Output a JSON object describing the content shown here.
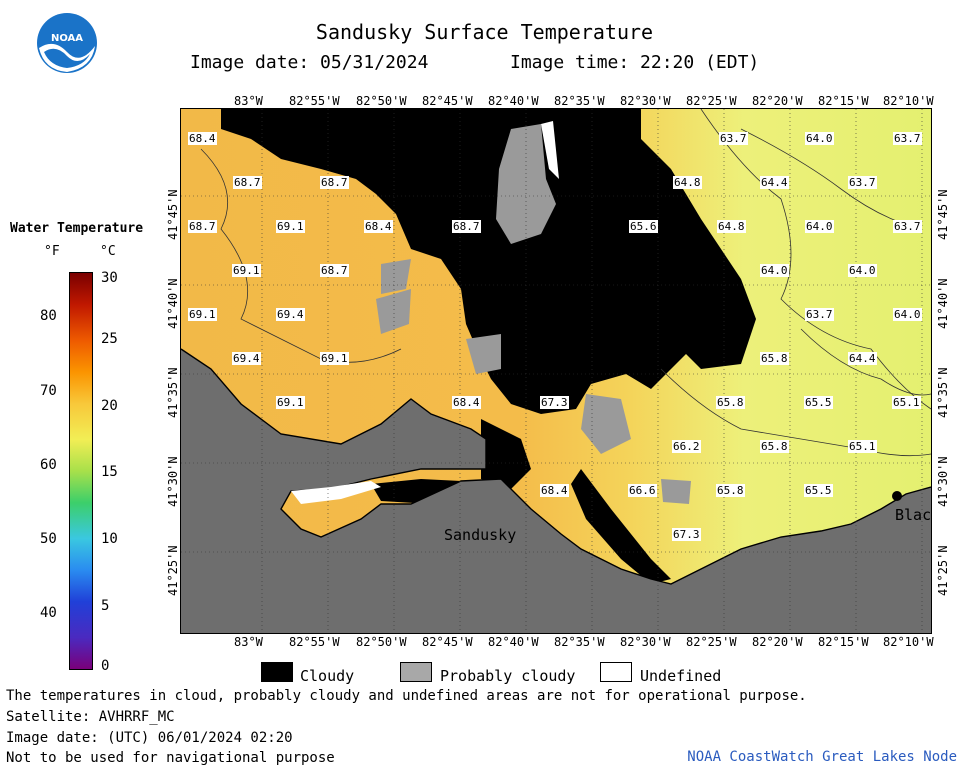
{
  "title": "Sandusky Surface Temperature",
  "image_date": "Image date: 05/31/2024",
  "image_time": "Image time: 22:20 (EDT)",
  "logo_text": "NOAA",
  "legend": {
    "title": "Water Temperature",
    "unit_f": "°F",
    "unit_c": "°C",
    "fahrenheit_ticks": [
      "80",
      "70",
      "60",
      "50",
      "40"
    ],
    "celsius_ticks": [
      "30",
      "25",
      "20",
      "15",
      "10",
      "5",
      "0"
    ]
  },
  "map": {
    "longitude_labels": [
      "83°W",
      "82°55'W",
      "82°50'W",
      "82°45'W",
      "82°40'W",
      "82°35'W",
      "82°30'W",
      "82°25'W",
      "82°20'W",
      "82°15'W",
      "82°10'W"
    ],
    "latitude_labels": [
      "41°45'N",
      "41°40'N",
      "41°35'N",
      "41°30'N",
      "41°25'N"
    ],
    "place_labels": [
      "Sandusky",
      "Blac"
    ],
    "temperature_labels": [
      "68.4",
      "63.7",
      "64.0",
      "63.7",
      "68.7",
      "68.7",
      "64.8",
      "64.4",
      "63.7",
      "68.7",
      "69.1",
      "68.4",
      "68.7",
      "65.6",
      "64.8",
      "64.0",
      "63.7",
      "69.1",
      "68.7",
      "64.0",
      "64.0",
      "69.1",
      "69.4",
      "63.7",
      "64.0",
      "69.4",
      "69.1",
      "65.8",
      "64.4",
      "69.1",
      "68.4",
      "67.3",
      "65.8",
      "65.5",
      "65.1",
      "66.2",
      "65.8",
      "65.1",
      "68.4",
      "66.6",
      "65.8",
      "65.5",
      "67.3"
    ]
  },
  "key": {
    "cloudy": "Cloudy",
    "probably_cloudy": "Probably cloudy",
    "undefined": "Undefined"
  },
  "footer": {
    "disclaimer": "The temperatures in cloud, probably cloudy and undefined areas are not for operational purpose.",
    "satellite": "Satellite: AVHRRF_MC",
    "utc_date": "Image date: (UTC) 06/01/2024  02:20",
    "nav_warning": "Not to be used for navigational purpose",
    "credit": "NOAA CoastWatch Great Lakes Node"
  }
}
